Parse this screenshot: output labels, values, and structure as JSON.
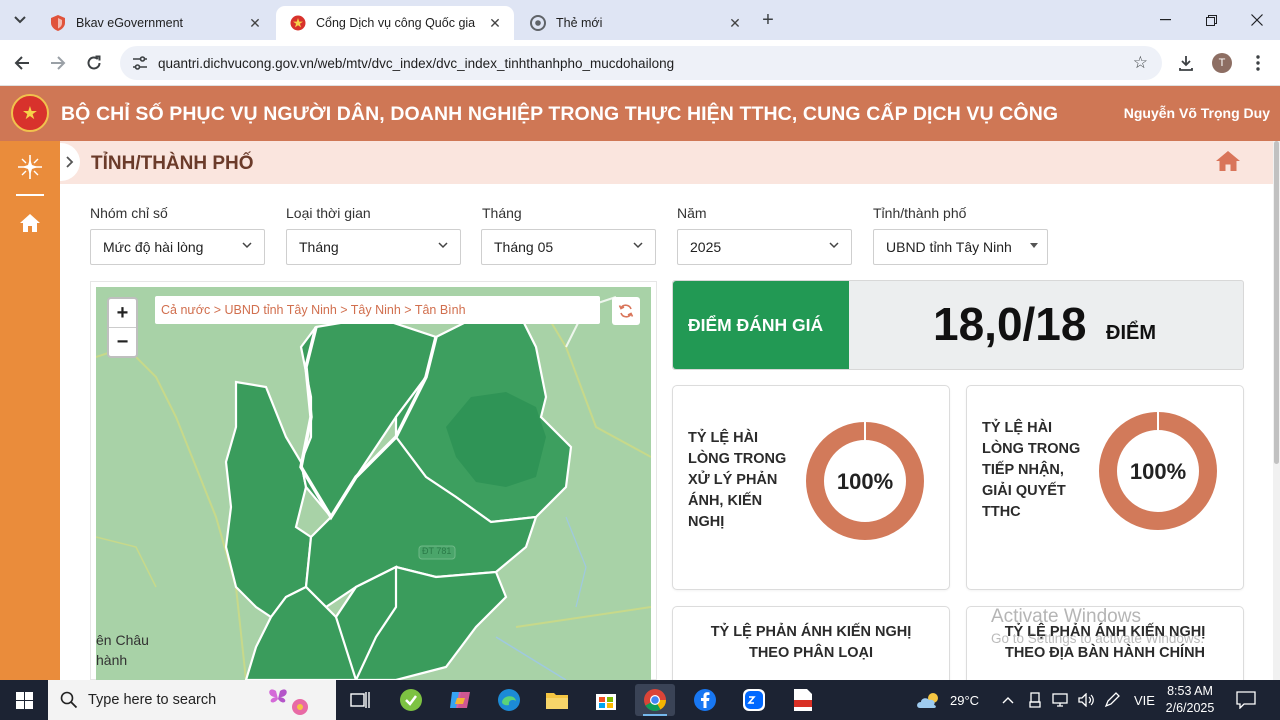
{
  "browser": {
    "tabs": [
      {
        "title": "Bkav eGovernment",
        "active": false
      },
      {
        "title": "Cổng Dịch vụ công Quốc gia",
        "active": true
      },
      {
        "title": "Thẻ mới",
        "active": false
      }
    ],
    "url": "quantri.dichvucong.gov.vn/web/mtv/dvc_index/dvc_index_tinhthanhpho_mucdohailong",
    "profile_initial": "T"
  },
  "header": {
    "title": "BỘ CHỈ SỐ PHỤC VỤ NGƯỜI DÂN, DOANH NGHIỆP TRONG THỰC HIỆN TTHC, CUNG CẤP DỊCH VỤ CÔNG",
    "user": "Nguyễn Võ Trọng Duy"
  },
  "page": {
    "title": "TỈNH/THÀNH PHỐ"
  },
  "filters": [
    {
      "label": "Nhóm chỉ số",
      "value": "Mức độ hài lòng"
    },
    {
      "label": "Loại thời gian",
      "value": "Tháng"
    },
    {
      "label": "Tháng",
      "value": "Tháng 05"
    },
    {
      "label": "Năm",
      "value": "2025"
    },
    {
      "label": "Tỉnh/thành phố",
      "value": "UBND tỉnh Tây Ninh"
    }
  ],
  "map": {
    "breadcrumb": "Cả nước > UBND tỉnh Tây Ninh > Tây Ninh > Tân Bình",
    "zoom_in": "+",
    "zoom_out": "−",
    "place_label_1": "ên Châu",
    "place_label_2": "hành",
    "road_label": "ĐT 781"
  },
  "score": {
    "label": "ĐIỂM ĐÁNH GIÁ",
    "value": "18,0/18",
    "unit": "ĐIỂM"
  },
  "cards": [
    {
      "title": "TỶ LỆ HÀI LÒNG TRONG XỬ LÝ PHẢN ÁNH, KIẾN NGHỊ",
      "percent": "100%"
    },
    {
      "title": "TỶ LỆ HÀI LÒNG TRONG TIẾP NHẬN, GIẢI QUYẾT TTHC",
      "percent": "100%"
    },
    {
      "title": "TỶ LỆ PHẢN ÁNH KIẾN NGHỊ THEO PHÂN LOẠI"
    },
    {
      "title": "TỶ LỆ PHẢN ÁNH KIẾN NGHỊ THEO ĐỊA BÀN HÀNH CHÍNH"
    }
  ],
  "watermark": {
    "line1": "Activate Windows",
    "line2": "Go to Settings to activate Windows."
  },
  "colors": {
    "header": "#cf7755",
    "sidebar": "#ea8c3b",
    "score_green": "#229954",
    "donut": "#d27a5a",
    "map_green": "#3a9c5c"
  },
  "taskbar": {
    "search_placeholder": "Type here to search",
    "weather": "29°C",
    "language": "VIE",
    "time": "8:53 AM",
    "date": "2/6/2025"
  }
}
